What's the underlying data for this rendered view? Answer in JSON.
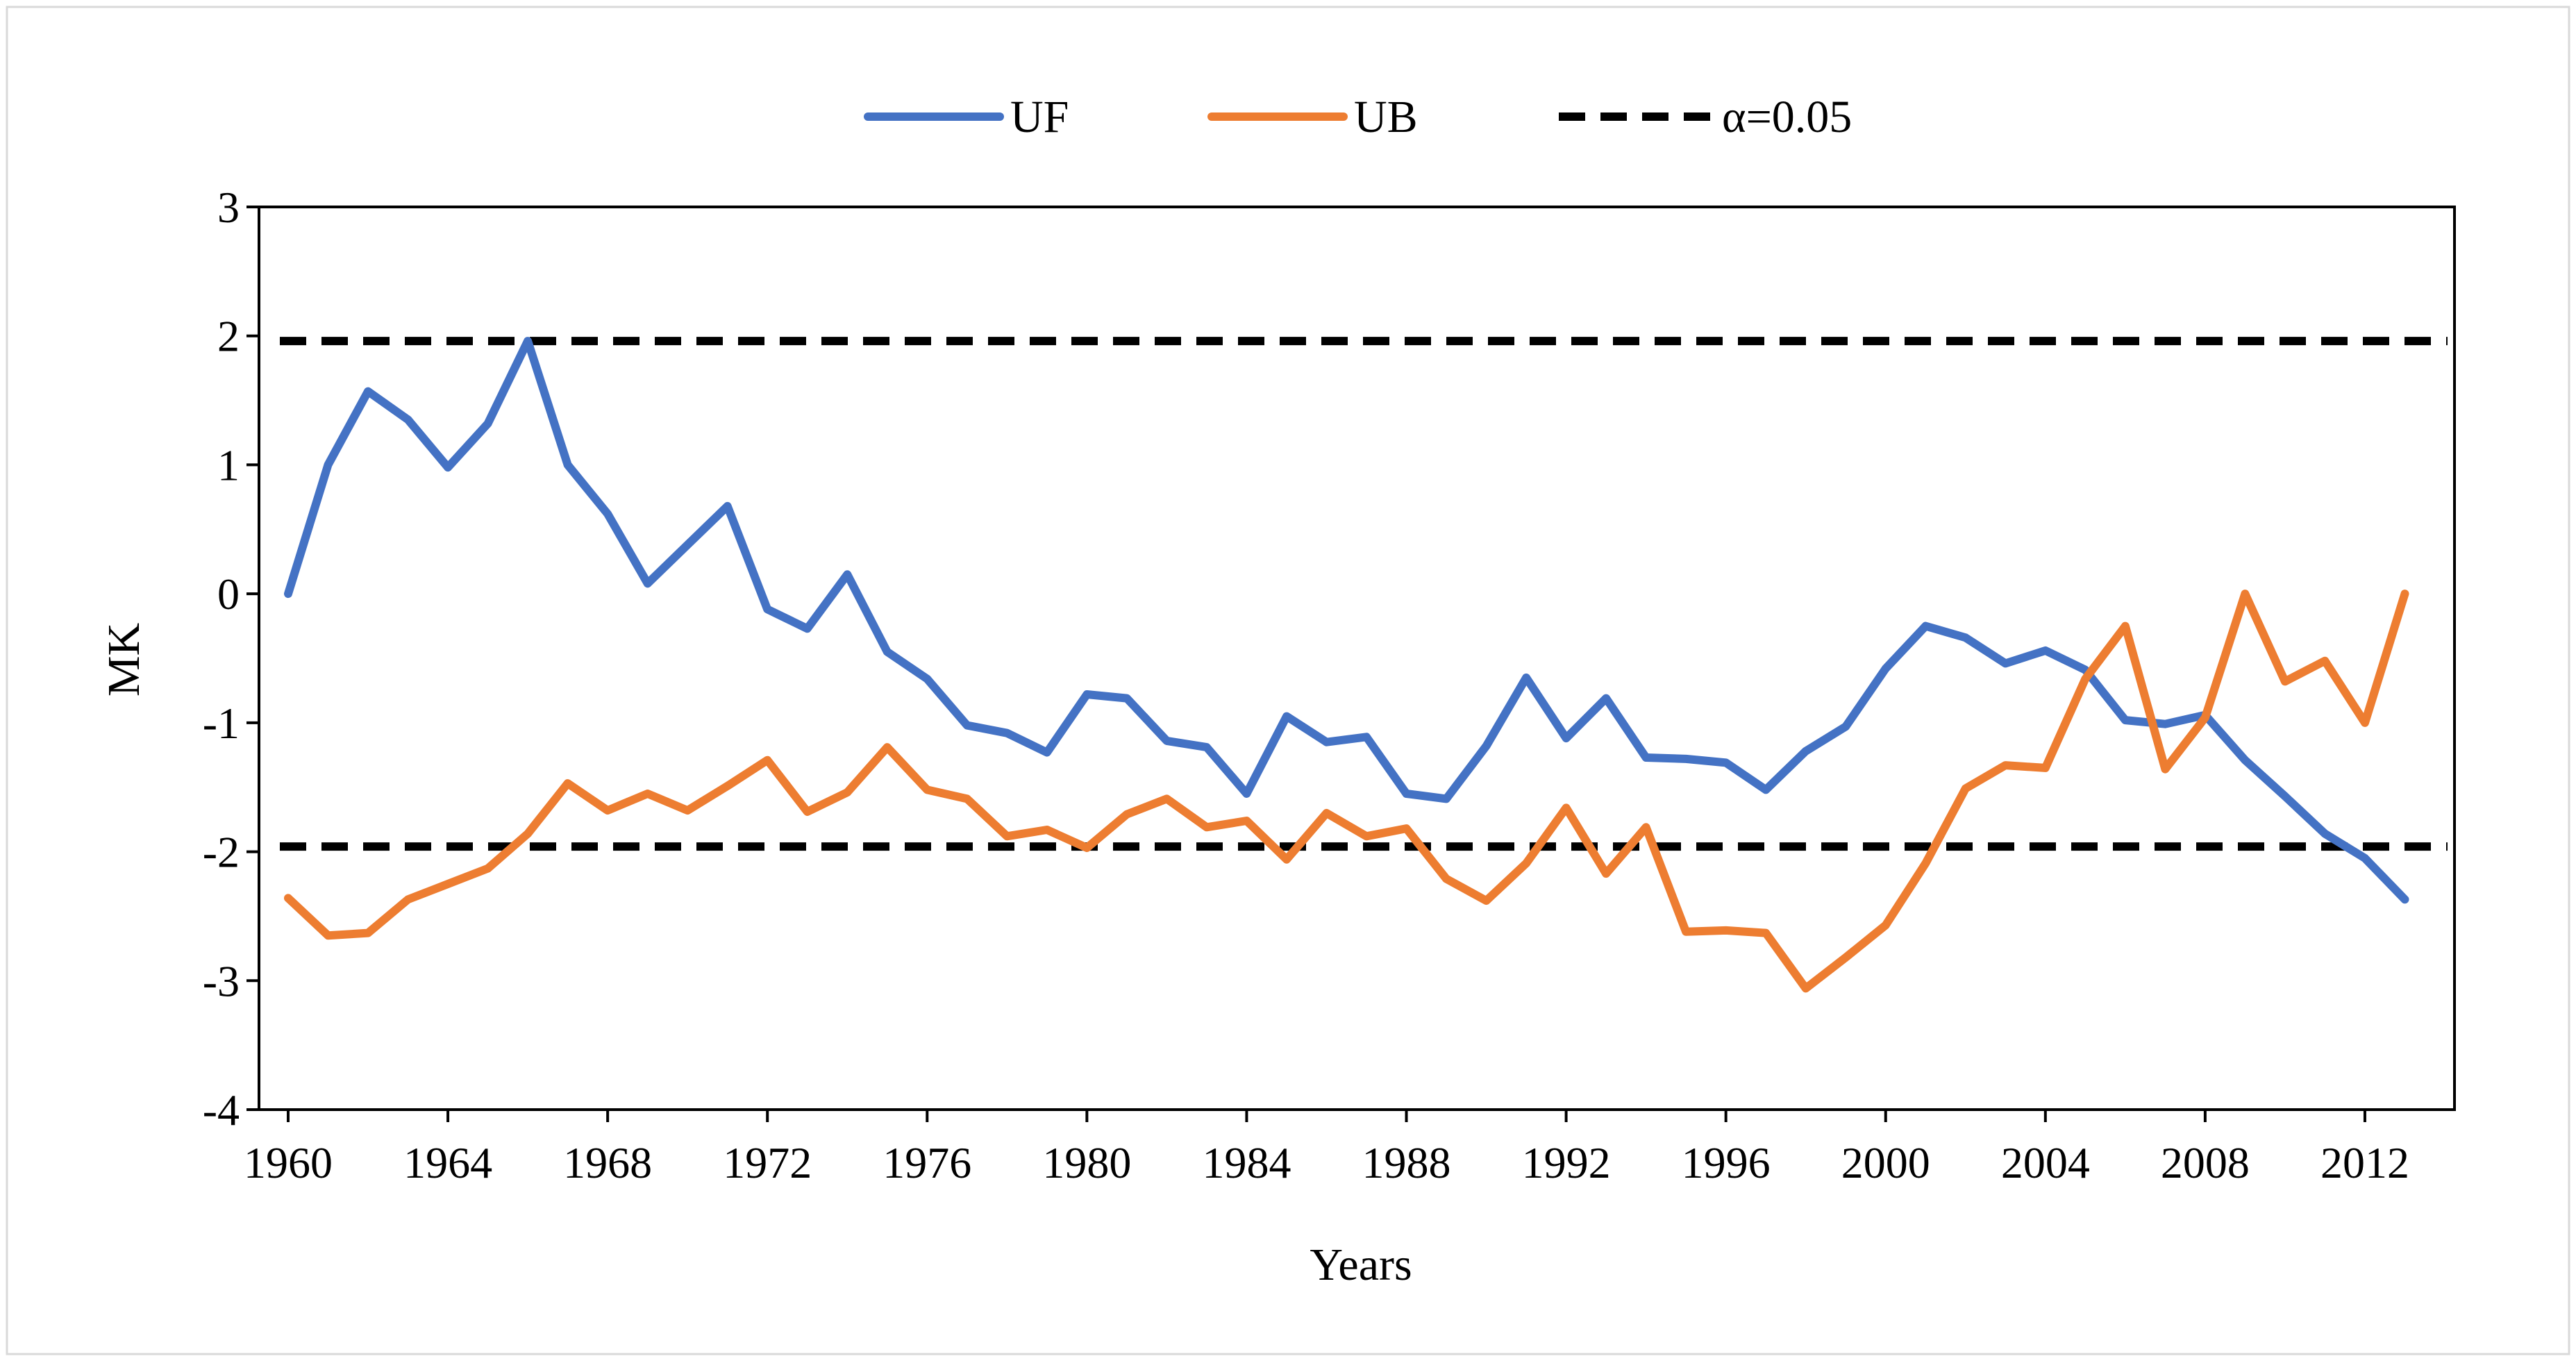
{
  "chart_data": {
    "type": "line",
    "title": "",
    "xlabel": "Years",
    "ylabel": "MK",
    "xlim": [
      1960,
      2014
    ],
    "ylim": [
      -4,
      3
    ],
    "yticks": [
      3,
      2,
      1,
      0,
      -1,
      -2,
      -3,
      -4
    ],
    "xticks": [
      1960,
      1964,
      1968,
      1972,
      1976,
      1980,
      1984,
      1988,
      1992,
      1996,
      2000,
      2004,
      2008,
      2012
    ],
    "legend": [
      "UF",
      "UB",
      "α=0.05"
    ],
    "legend_position": "top",
    "grid": false,
    "threshold": {
      "name": "α=0.05",
      "values": [
        1.96,
        -1.96
      ],
      "style": "dashed",
      "color": "#000000"
    },
    "series": [
      {
        "name": "UF",
        "color": "#4472C4",
        "x": [
          1960,
          1961,
          1962,
          1963,
          1964,
          1965,
          1966,
          1967,
          1968,
          1969,
          1970,
          1971,
          1972,
          1973,
          1974,
          1975,
          1976,
          1977,
          1978,
          1979,
          1980,
          1981,
          1982,
          1983,
          1984,
          1985,
          1986,
          1987,
          1988,
          1989,
          1990,
          1991,
          1992,
          1993,
          1994,
          1995,
          1996,
          1997,
          1998,
          1999,
          2000,
          2001,
          2002,
          2003,
          2004,
          2005,
          2006,
          2007,
          2008,
          2009,
          2010,
          2011,
          2012,
          2013
        ],
        "values": [
          0,
          1.0,
          1.57,
          1.35,
          0.98,
          1.32,
          1.96,
          1.0,
          0.62,
          0.08,
          0.38,
          0.68,
          -0.12,
          -0.27,
          0.15,
          -0.45,
          -0.66,
          -1.02,
          -1.08,
          -1.23,
          -0.78,
          -0.81,
          -1.14,
          -1.19,
          -1.55,
          -0.95,
          -1.15,
          -1.11,
          -1.55,
          -1.59,
          -1.18,
          -0.65,
          -1.12,
          -0.81,
          -1.27,
          -1.28,
          -1.31,
          -1.52,
          -1.22,
          -1.03,
          -0.58,
          -0.25,
          -0.34,
          -0.54,
          -0.44,
          -0.59,
          -0.98,
          -1.01,
          -0.94,
          -1.29,
          -1.57,
          -1.86,
          -2.05,
          -2.37
        ]
      },
      {
        "name": "UB",
        "color": "#ED7D31",
        "x": [
          1960,
          1961,
          1962,
          1963,
          1964,
          1965,
          1966,
          1967,
          1968,
          1969,
          1970,
          1971,
          1972,
          1973,
          1974,
          1975,
          1976,
          1977,
          1978,
          1979,
          1980,
          1981,
          1982,
          1983,
          1984,
          1985,
          1986,
          1987,
          1988,
          1989,
          1990,
          1991,
          1992,
          1993,
          1994,
          1995,
          1996,
          1997,
          1998,
          1999,
          2000,
          2001,
          2002,
          2003,
          2004,
          2005,
          2006,
          2007,
          2008,
          2009,
          2010,
          2011,
          2012,
          2013
        ],
        "values": [
          -2.36,
          -2.65,
          -2.63,
          -2.37,
          -2.25,
          -2.13,
          -1.86,
          -1.47,
          -1.68,
          -1.55,
          -1.68,
          -1.49,
          -1.29,
          -1.69,
          -1.54,
          -1.19,
          -1.52,
          -1.59,
          -1.88,
          -1.83,
          -1.97,
          -1.71,
          -1.59,
          -1.81,
          -1.76,
          -2.06,
          -1.7,
          -1.88,
          -1.82,
          -2.21,
          -2.38,
          -2.09,
          -1.66,
          -2.17,
          -1.81,
          -2.62,
          -2.61,
          -2.63,
          -3.06,
          -2.82,
          -2.57,
          -2.09,
          -1.51,
          -1.33,
          -1.35,
          -0.66,
          -0.25,
          -1.36,
          -0.96,
          0,
          -0.68,
          -0.52,
          -1.0,
          0
        ]
      }
    ]
  }
}
